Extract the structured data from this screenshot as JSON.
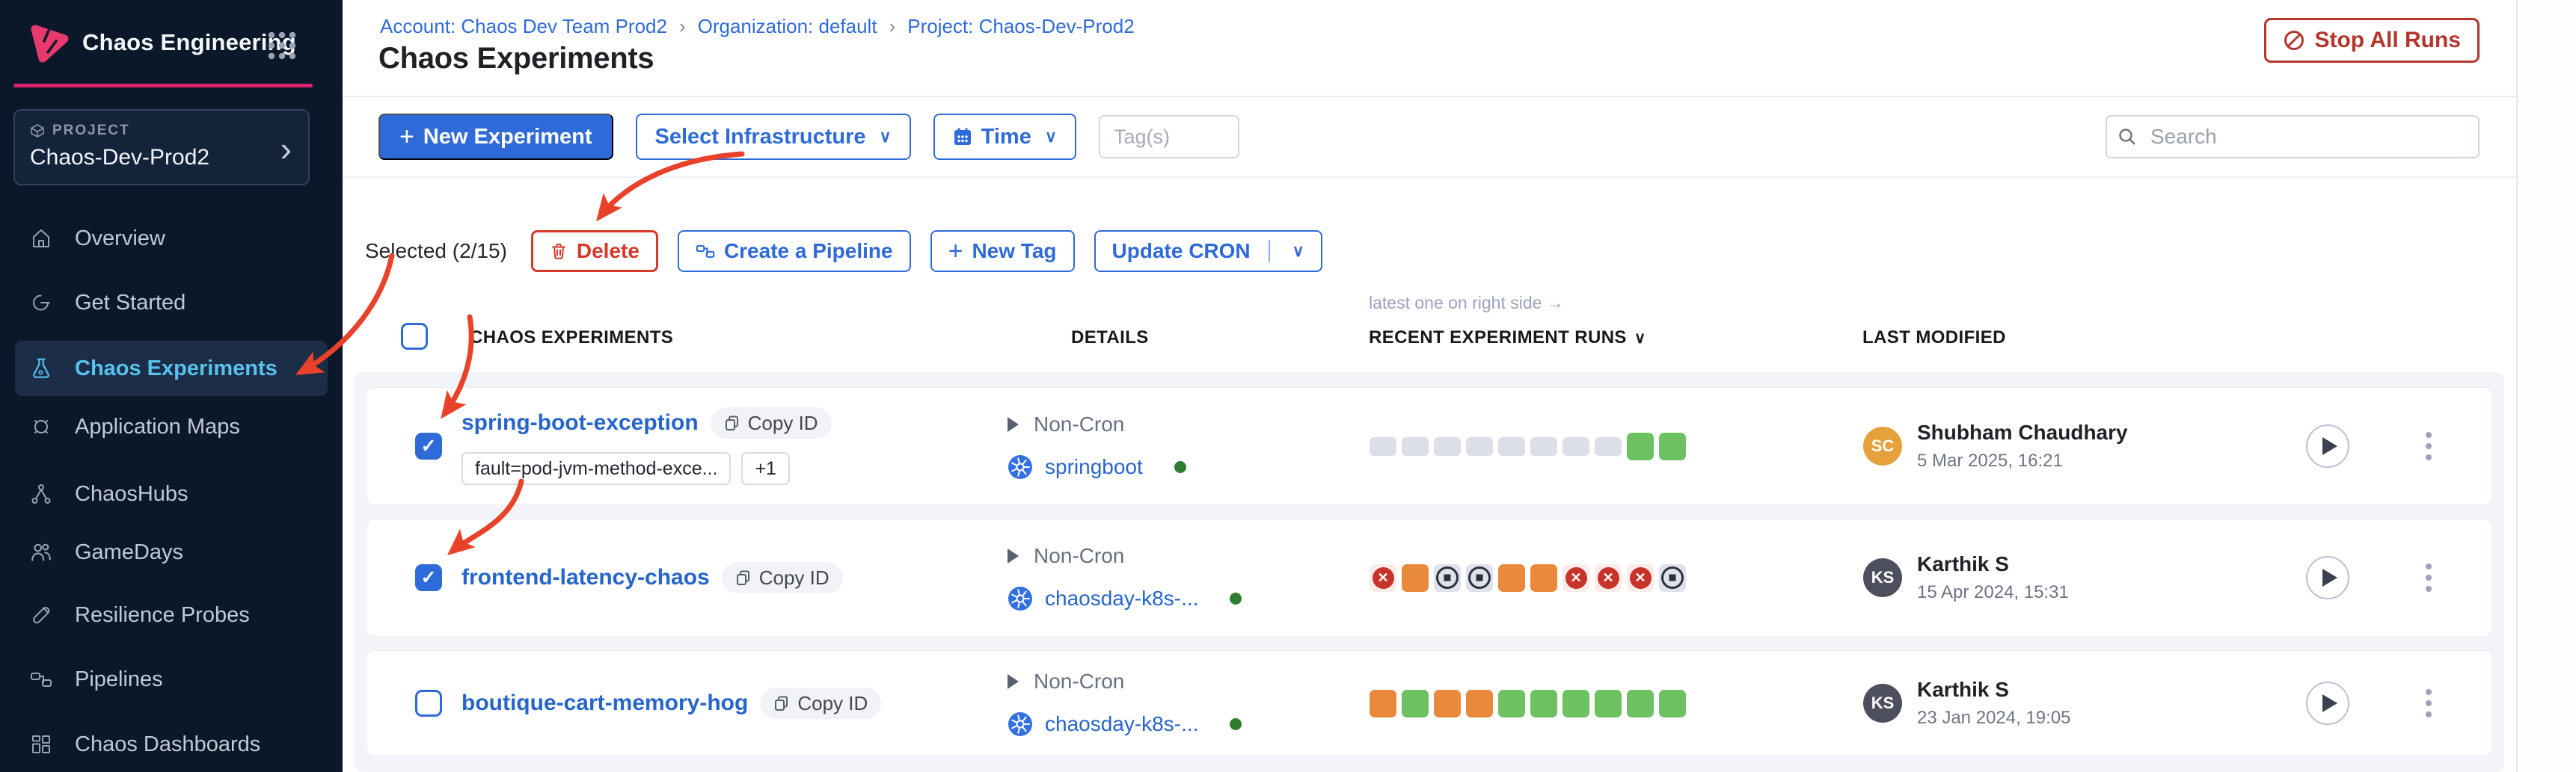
{
  "brand": {
    "app_title": "Chaos Engineering"
  },
  "project_switcher": {
    "label": "PROJECT",
    "name": "Chaos-Dev-Prod2"
  },
  "sidebar": {
    "items": [
      {
        "label": "Overview",
        "icon": "home-icon",
        "active": false
      },
      {
        "label": "Get Started",
        "icon": "get-started-icon",
        "active": false
      },
      {
        "label": "Chaos Experiments",
        "icon": "flask-icon",
        "active": true
      },
      {
        "label": "Application Maps",
        "icon": "application-maps-icon",
        "active": false
      },
      {
        "label": "ChaosHubs",
        "icon": "chaoshubs-icon",
        "active": false
      },
      {
        "label": "GameDays",
        "icon": "gamedays-icon",
        "active": false
      },
      {
        "label": "Resilience Probes",
        "icon": "resilience-probes-icon",
        "active": false
      },
      {
        "label": "Pipelines",
        "icon": "pipelines-icon",
        "active": false
      },
      {
        "label": "Chaos Dashboards",
        "icon": "dashboards-icon",
        "active": false
      }
    ]
  },
  "header": {
    "breadcrumbs": [
      "Account: Chaos Dev Team Prod2",
      "Organization: default",
      "Project: Chaos-Dev-Prod2"
    ],
    "page_title": "Chaos Experiments",
    "stop_all_runs_label": "Stop All Runs"
  },
  "toolbar": {
    "new_experiment_label": "New Experiment",
    "select_infrastructure_label": "Select Infrastructure",
    "time_label": "Time",
    "tags_placeholder": "Tag(s)",
    "search_placeholder": "Search"
  },
  "bulk_actions": {
    "selected_label": "Selected (2/15)",
    "delete_label": "Delete",
    "create_pipeline_label": "Create a Pipeline",
    "new_tag_label": "New Tag",
    "update_cron_label": "Update CRON"
  },
  "table": {
    "headers": {
      "experiments": "CHAOS EXPERIMENTS",
      "details": "DETAILS",
      "recent_runs": "RECENT EXPERIMENT RUNS",
      "recent_runs_hint": "latest one on right side →",
      "last_modified": "LAST MODIFIED"
    },
    "rows": [
      {
        "name": "spring-boot-exception",
        "copy_id_label": "Copy ID",
        "checked": true,
        "tags": [
          "fault=pod-jvm-method-exce...",
          "+1"
        ],
        "schedule": "Non-Cron",
        "infrastructure": "springboot",
        "runs": [
          "empty",
          "empty",
          "empty",
          "empty",
          "empty",
          "empty",
          "empty",
          "empty",
          "success",
          "success"
        ],
        "modified_by": {
          "initials": "SC",
          "name": "Shubham Chaudhary",
          "date": "5 Mar 2025, 16:21",
          "avatar_color": "#E6A03C"
        }
      },
      {
        "name": "frontend-latency-chaos",
        "copy_id_label": "Copy ID",
        "checked": true,
        "tags": [],
        "schedule": "Non-Cron",
        "infrastructure": "chaosday-k8s-...",
        "runs": [
          "failed",
          "running",
          "stopped",
          "stopped",
          "running",
          "running",
          "failed",
          "failed",
          "failed",
          "stopped"
        ],
        "modified_by": {
          "initials": "KS",
          "name": "Karthik S",
          "date": "15 Apr 2024, 15:31",
          "avatar_color": "#4D4F5E"
        }
      },
      {
        "name": "boutique-cart-memory-hog",
        "copy_id_label": "Copy ID",
        "checked": false,
        "tags": [],
        "schedule": "Non-Cron",
        "infrastructure": "chaosday-k8s-...",
        "runs": [
          "running",
          "success",
          "running",
          "running",
          "success",
          "success",
          "success",
          "success",
          "success",
          "success"
        ],
        "modified_by": {
          "initials": "KS",
          "name": "Karthik S",
          "date": "23 Jan 2024, 19:05",
          "avatar_color": "#4D4F5E"
        }
      }
    ]
  },
  "annotations": {
    "arrow_color": "#E8432A",
    "arrows": [
      "toolbar-to-delete-button",
      "to-sidebar-chaos-experiments",
      "to-row1-checkbox",
      "to-row2-checkbox"
    ]
  },
  "colors": {
    "accent_blue": "#2F6BD8",
    "link_blue": "#2665CC",
    "brand_pink": "#E0226E",
    "danger_red": "#D6392B",
    "stop_red": "#B4362D",
    "run_success": "#6CC161",
    "run_running": "#E9893C",
    "run_failed": "#C8332A",
    "sidebar_bg": "#0B1829",
    "active_item_text": "#58C1EE"
  }
}
